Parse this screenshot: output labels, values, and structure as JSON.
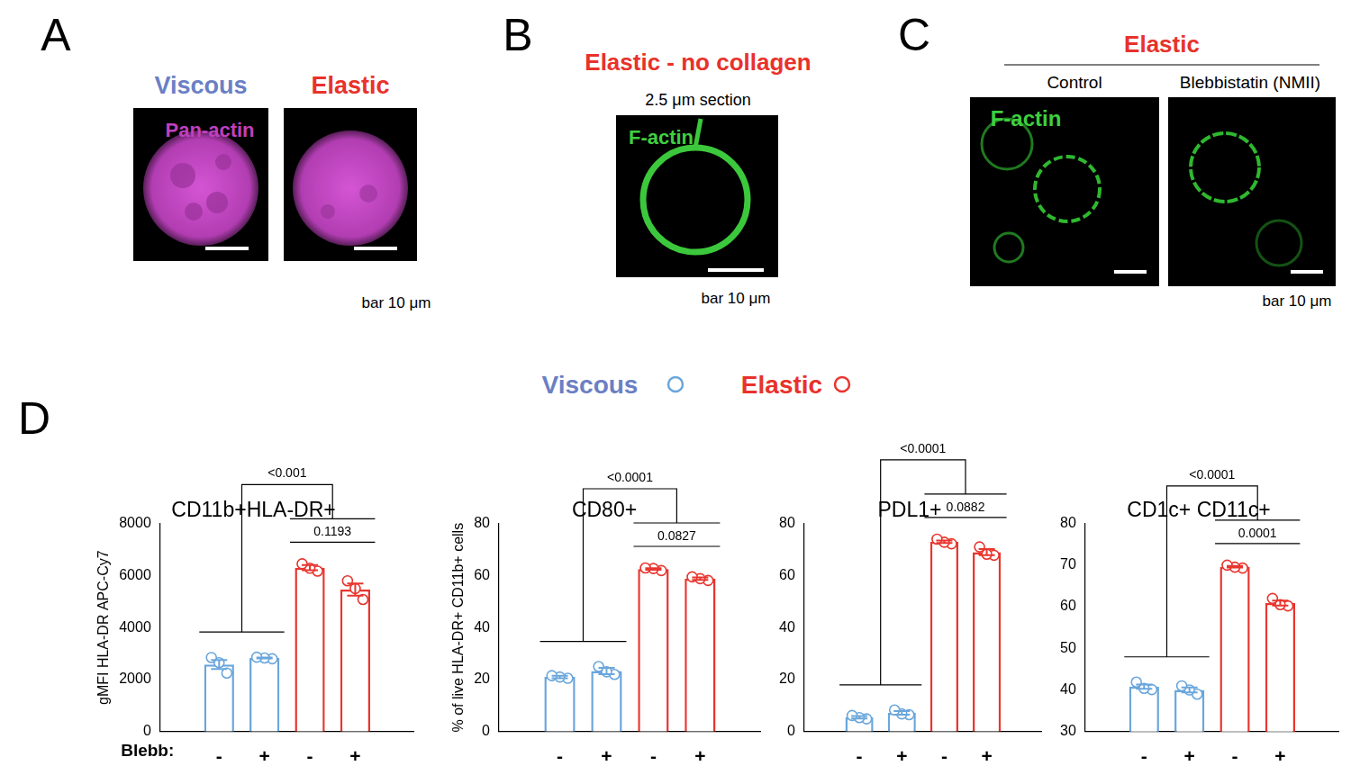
{
  "panels": [
    {
      "label": "A",
      "images": [
        {
          "title": "Viscous",
          "title_color": "#6b7fc4",
          "stain": "Pan-actin",
          "stain_color": "#c040c0"
        },
        {
          "title": "Elastic",
          "title_color": "#e8322b"
        }
      ],
      "scale_note": "bar 10 μm"
    },
    {
      "label": "B",
      "title": "Elastic - no collagen",
      "title_color": "#e8322b",
      "subtitle": "2.5 μm section",
      "images": [
        {
          "stain": "F-actin",
          "stain_color": "#3fcf3f"
        }
      ],
      "scale_note": "bar 10 μm"
    },
    {
      "label": "C",
      "title": "Elastic",
      "title_color": "#e8322b",
      "images": [
        {
          "title": "Control",
          "stain": "F-actin",
          "stain_color": "#3fcf3f"
        },
        {
          "title": "Blebbistatin (NMII)"
        }
      ],
      "scale_note": "bar 10 μm"
    }
  ],
  "chart_panel_label": "D",
  "legend_items": [
    {
      "name": "Viscous",
      "color": "#6aa6dc",
      "text_color": "#6b7fc4"
    },
    {
      "name": "Elastic",
      "color": "#e8352e",
      "text_color": "#e8322b"
    }
  ],
  "chart_data": [
    {
      "type": "bar",
      "title": "CD11b+HLA-DR+",
      "y_label": "gMFI HLA-DR APC-Cy7",
      "x_label": "Blebb:",
      "categories": [
        "-",
        "+",
        "-",
        "+"
      ],
      "values": [
        2580,
        2830,
        6300,
        5460
      ],
      "errors": [
        170,
        20,
        100,
        230
      ],
      "points": [
        [
          2850,
          2650,
          2250
        ],
        [
          2860,
          2830,
          2800
        ],
        [
          6450,
          6280,
          6170
        ],
        [
          5800,
          5500,
          5080
        ]
      ],
      "colors": [
        "#6aa6dc",
        "#6aa6dc",
        "#e8352e",
        "#e8352e"
      ],
      "ylim": [
        0,
        8000
      ],
      "yticks": [
        0,
        2000,
        4000,
        6000,
        8000
      ],
      "grid": false,
      "annotations": [
        "<0.001",
        "0.1193"
      ]
    },
    {
      "type": "bar",
      "title": "CD80+",
      "y_label": "% of live HLA-DR+ CD11b+ cells",
      "categories": [
        "-",
        "+",
        "-",
        "+"
      ],
      "values": [
        21,
        23.3,
        62.5,
        58.8
      ],
      "errors": [
        0.5,
        1.2,
        0.3,
        0.5
      ],
      "points": [
        [
          21.5,
          21,
          20.5
        ],
        [
          25,
          23,
          22
        ],
        [
          62.9,
          62.7,
          61.9
        ],
        [
          59.5,
          58.8,
          58.1
        ]
      ],
      "colors": [
        "#6aa6dc",
        "#6aa6dc",
        "#e8352e",
        "#e8352e"
      ],
      "ylim": [
        0,
        80
      ],
      "yticks": [
        0,
        20,
        40,
        60,
        80
      ],
      "grid": false,
      "annotations": [
        "<0.0001",
        "0.0827"
      ]
    },
    {
      "type": "bar",
      "title": "PDL1+",
      "categories": [
        "-",
        "+",
        "-",
        "+"
      ],
      "values": [
        5.5,
        7.2,
        73,
        69
      ],
      "errors": [
        0.5,
        0.7,
        0.5,
        1.2
      ],
      "points": [
        [
          6.2,
          5.4,
          4.9
        ],
        [
          8.3,
          6.8,
          6.5
        ],
        [
          74,
          72.8,
          72.2
        ],
        [
          71,
          68.2,
          67.8
        ]
      ],
      "colors": [
        "#6aa6dc",
        "#6aa6dc",
        "#e8352e",
        "#e8352e"
      ],
      "ylim": [
        0,
        80
      ],
      "yticks": [
        0,
        20,
        40,
        60,
        80
      ],
      "grid": false,
      "annotations": [
        "<0.0001",
        "0.0882"
      ]
    },
    {
      "type": "bar",
      "title": "CD1c+ CD11c+",
      "categories": [
        "-",
        "+",
        "-",
        "+"
      ],
      "values": [
        40.8,
        40,
        69.6,
        60.9
      ],
      "errors": [
        0.5,
        0.6,
        0.2,
        0.6
      ],
      "points": [
        [
          41.9,
          40.4,
          40.1
        ],
        [
          41,
          40,
          39
        ],
        [
          70,
          69.5,
          69.3
        ],
        [
          62,
          60.5,
          60.2
        ]
      ],
      "colors": [
        "#6aa6dc",
        "#6aa6dc",
        "#e8352e",
        "#e8352e"
      ],
      "ylim": [
        30,
        80
      ],
      "yticks": [
        30,
        40,
        50,
        60,
        70,
        80
      ],
      "grid": false,
      "annotations": [
        "<0.0001",
        "0.0001"
      ]
    }
  ]
}
